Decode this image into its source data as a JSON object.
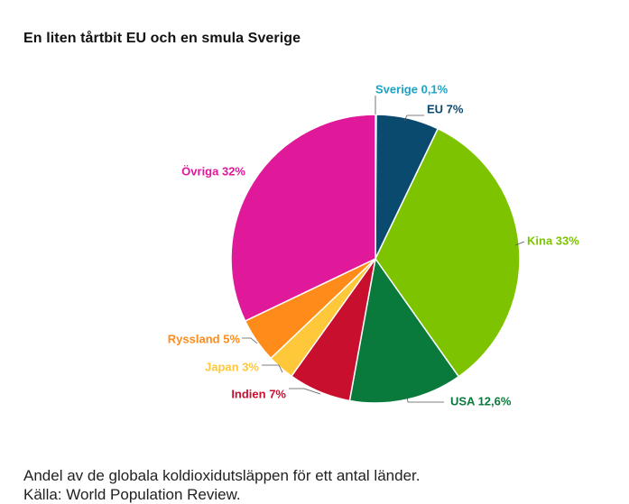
{
  "title": "En liten tårtbit EU och en smula Sverige",
  "caption": {
    "line1": "Andel av de globala koldioxidutsläppen för ett antal länder.",
    "line2": "Källa: World Population Review."
  },
  "chart_data": {
    "type": "pie",
    "title": "En liten tårtbit EU och en smula Sverige",
    "start": "12 o'clock, clockwise",
    "slices": [
      {
        "name": "Sverige",
        "label": "Sverige 0,1%",
        "value": 0.1,
        "color": "#1ba3c6"
      },
      {
        "name": "EU",
        "label": "EU 7%",
        "value": 7,
        "color": "#0b4a6f"
      },
      {
        "name": "Kina",
        "label": "Kina 33%",
        "value": 33,
        "color": "#7dc300"
      },
      {
        "name": "USA",
        "label": "USA 12,6%",
        "value": 12.6,
        "color": "#0a7a3c"
      },
      {
        "name": "Indien",
        "label": "Indien 7%",
        "value": 7,
        "color": "#c8102e"
      },
      {
        "name": "Japan",
        "label": "Japan 3%",
        "value": 3,
        "color": "#ffc83a"
      },
      {
        "name": "Ryssland",
        "label": "Ryssland 5%",
        "value": 5,
        "color": "#ff8c1a"
      },
      {
        "name": "Övriga",
        "label": "Övriga 32%",
        "value": 32,
        "color": "#e0189a"
      }
    ]
  }
}
